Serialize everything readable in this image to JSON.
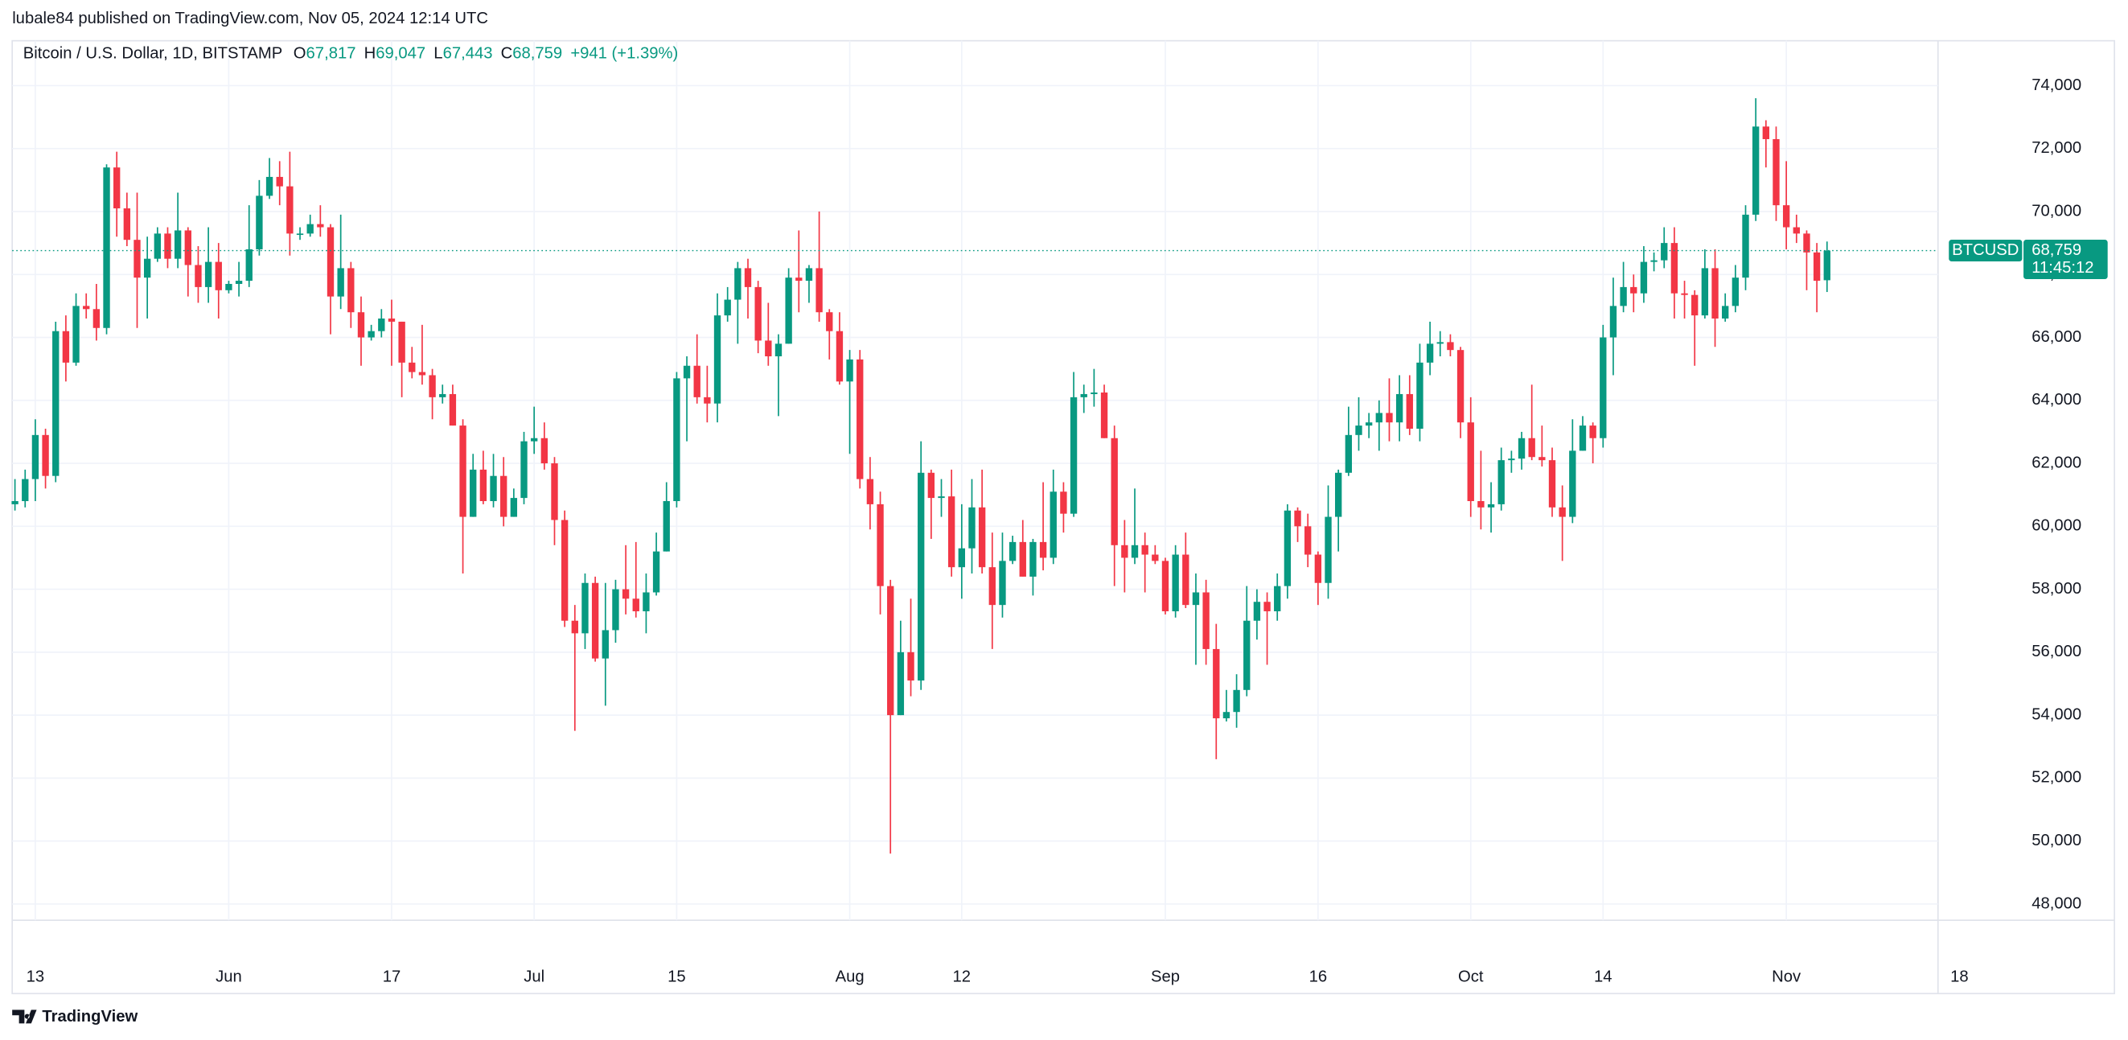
{
  "header": {
    "published": "lubale84 published on TradingView.com, Nov 05, 2024 12:14 UTC"
  },
  "chart_data": {
    "type": "candlestick",
    "title": "Bitcoin / U.S. Dollar, 1D, BITSTAMP",
    "legend_values": [
      {
        "key": "O",
        "value": "67,817"
      },
      {
        "key": "H",
        "value": "69,047"
      },
      {
        "key": "L",
        "value": "67,443"
      },
      {
        "key": "C",
        "value": "68,759"
      }
    ],
    "change": "+941 (+1.39%)",
    "up_color": "#089981",
    "down_color": "#f23645",
    "candles": [
      [
        60700,
        61500,
        60500,
        60800
      ],
      [
        60800,
        61800,
        60600,
        61500
      ],
      [
        61500,
        63400,
        60800,
        62900
      ],
      [
        62900,
        63100,
        61200,
        61600
      ],
      [
        61600,
        66500,
        61400,
        66200
      ],
      [
        66200,
        66700,
        64600,
        65200
      ],
      [
        65200,
        67400,
        65100,
        67000
      ],
      [
        67000,
        67400,
        66600,
        66900
      ],
      [
        66900,
        67700,
        65900,
        66300
      ],
      [
        66300,
        71500,
        66100,
        71400
      ],
      [
        71400,
        71900,
        69200,
        70100
      ],
      [
        70100,
        70600,
        68900,
        69100
      ],
      [
        69100,
        70600,
        66300,
        67900
      ],
      [
        67900,
        69200,
        66600,
        68500
      ],
      [
        68500,
        69500,
        68400,
        69300
      ],
      [
        69300,
        69500,
        68200,
        68500
      ],
      [
        68500,
        70600,
        68200,
        69400
      ],
      [
        69400,
        69500,
        67300,
        68300
      ],
      [
        68300,
        68900,
        67100,
        67600
      ],
      [
        67600,
        69500,
        67100,
        68400
      ],
      [
        68400,
        69000,
        66600,
        67500
      ],
      [
        67500,
        67800,
        67400,
        67700
      ],
      [
        67700,
        68400,
        67300,
        67800
      ],
      [
        67800,
        70200,
        67600,
        68800
      ],
      [
        68800,
        71000,
        68600,
        70500
      ],
      [
        70500,
        71700,
        70400,
        71100
      ],
      [
        71100,
        71600,
        70200,
        70800
      ],
      [
        70800,
        71900,
        68600,
        69300
      ],
      [
        69300,
        69500,
        69100,
        69300
      ],
      [
        69300,
        69900,
        69200,
        69600
      ],
      [
        69600,
        70200,
        69200,
        69500
      ],
      [
        69500,
        69600,
        66100,
        67300
      ],
      [
        67300,
        69900,
        66900,
        68200
      ],
      [
        68200,
        68400,
        66300,
        66800
      ],
      [
        66800,
        67300,
        65100,
        66000
      ],
      [
        66000,
        66400,
        65900,
        66200
      ],
      [
        66200,
        66900,
        66000,
        66600
      ],
      [
        66600,
        67200,
        65100,
        66500
      ],
      [
        66500,
        66500,
        64100,
        65200
      ],
      [
        65200,
        65700,
        64700,
        64900
      ],
      [
        64900,
        66400,
        64500,
        64800
      ],
      [
        64800,
        65000,
        63400,
        64100
      ],
      [
        64100,
        64500,
        63900,
        64200
      ],
      [
        64200,
        64500,
        63200,
        63200
      ],
      [
        63200,
        63400,
        58500,
        60300
      ],
      [
        60300,
        62300,
        60300,
        61800
      ],
      [
        61800,
        62400,
        60700,
        60800
      ],
      [
        60800,
        62300,
        60600,
        61600
      ],
      [
        61600,
        62200,
        60000,
        60300
      ],
      [
        60300,
        61200,
        60300,
        60900
      ],
      [
        60900,
        63000,
        60700,
        62700
      ],
      [
        62700,
        63800,
        62300,
        62800
      ],
      [
        62800,
        63300,
        61800,
        62000
      ],
      [
        62000,
        62200,
        59400,
        60200
      ],
      [
        60200,
        60500,
        56800,
        57000
      ],
      [
        57000,
        57500,
        53500,
        56600
      ],
      [
        56600,
        58500,
        56100,
        58200
      ],
      [
        58200,
        58400,
        55700,
        55800
      ],
      [
        55800,
        58200,
        54300,
        56700
      ],
      [
        56700,
        58300,
        56300,
        58000
      ],
      [
        58000,
        59400,
        57200,
        57700
      ],
      [
        57700,
        59500,
        57100,
        57300
      ],
      [
        57300,
        58500,
        56600,
        57900
      ],
      [
        57900,
        59800,
        57800,
        59200
      ],
      [
        59200,
        61400,
        59200,
        60800
      ],
      [
        60800,
        64900,
        60600,
        64700
      ],
      [
        64700,
        65400,
        62700,
        65100
      ],
      [
        65100,
        66100,
        63900,
        64100
      ],
      [
        64100,
        65100,
        63300,
        63900
      ],
      [
        63900,
        67400,
        63300,
        66700
      ],
      [
        66700,
        67600,
        66500,
        67200
      ],
      [
        67200,
        68400,
        65800,
        68200
      ],
      [
        68200,
        68500,
        66600,
        67600
      ],
      [
        67600,
        67800,
        65500,
        65900
      ],
      [
        65900,
        67100,
        65100,
        65400
      ],
      [
        65400,
        66100,
        63500,
        65800
      ],
      [
        65800,
        68200,
        65800,
        67900
      ],
      [
        67900,
        69400,
        66800,
        67800
      ],
      [
        67800,
        68300,
        67100,
        68200
      ],
      [
        68200,
        70000,
        66500,
        66800
      ],
      [
        66800,
        66900,
        65300,
        66200
      ],
      [
        66200,
        66800,
        64500,
        64600
      ],
      [
        64600,
        65600,
        62300,
        65300
      ],
      [
        65300,
        65600,
        61200,
        61500
      ],
      [
        61500,
        62200,
        59900,
        60700
      ],
      [
        60700,
        61100,
        57200,
        58100
      ],
      [
        58100,
        58300,
        49600,
        54000
      ],
      [
        54000,
        57000,
        54000,
        56000
      ],
      [
        56000,
        57700,
        54600,
        55100
      ],
      [
        55100,
        62700,
        54800,
        61700
      ],
      [
        61700,
        61800,
        59600,
        60900
      ],
      [
        60900,
        61500,
        60300,
        60950
      ],
      [
        60950,
        61800,
        58400,
        58700
      ],
      [
        58700,
        60700,
        57700,
        59300
      ],
      [
        59300,
        61500,
        58500,
        60600
      ],
      [
        60600,
        61800,
        58500,
        58700
      ],
      [
        58700,
        59800,
        56100,
        57500
      ],
      [
        57500,
        59800,
        57100,
        58900
      ],
      [
        58900,
        59700,
        58800,
        59500
      ],
      [
        59500,
        60200,
        58400,
        58400
      ],
      [
        58400,
        59600,
        57800,
        59500
      ],
      [
        59500,
        61400,
        58600,
        59000
      ],
      [
        59000,
        61800,
        58800,
        61100
      ],
      [
        61100,
        61400,
        59800,
        60400
      ],
      [
        60400,
        64900,
        60300,
        64100
      ],
      [
        64100,
        64500,
        63600,
        64200
      ],
      [
        64200,
        65000,
        63800,
        64250
      ],
      [
        64250,
        64500,
        62800,
        62800
      ],
      [
        62800,
        63200,
        58100,
        59400
      ],
      [
        59400,
        60200,
        57900,
        59000
      ],
      [
        59000,
        61200,
        58800,
        59400
      ],
      [
        59400,
        59800,
        57900,
        59100
      ],
      [
        59100,
        59400,
        58800,
        58900
      ],
      [
        58900,
        59000,
        57200,
        57300
      ],
      [
        57300,
        59400,
        57100,
        59100
      ],
      [
        59100,
        59800,
        57400,
        57500
      ],
      [
        57500,
        58500,
        55600,
        57900
      ],
      [
        57900,
        58300,
        55600,
        56100
      ],
      [
        56100,
        56900,
        52600,
        53900
      ],
      [
        53900,
        54800,
        53800,
        54100
      ],
      [
        54100,
        55300,
        53600,
        54800
      ],
      [
        54800,
        58100,
        54600,
        57000
      ],
      [
        57000,
        58000,
        56400,
        57600
      ],
      [
        57600,
        57900,
        55600,
        57300
      ],
      [
        57300,
        58500,
        57000,
        58100
      ],
      [
        58100,
        60700,
        57700,
        60500
      ],
      [
        60500,
        60600,
        59500,
        60000
      ],
      [
        60000,
        60400,
        58700,
        59100
      ],
      [
        59100,
        59200,
        57500,
        58200
      ],
      [
        58200,
        61300,
        57700,
        60300
      ],
      [
        60300,
        61800,
        59200,
        61700
      ],
      [
        61700,
        63800,
        61600,
        62900
      ],
      [
        62900,
        64100,
        62400,
        63200
      ],
      [
        63200,
        63600,
        62800,
        63300
      ],
      [
        63300,
        64000,
        62400,
        63600
      ],
      [
        63600,
        64700,
        62700,
        63300
      ],
      [
        63300,
        64800,
        62700,
        64200
      ],
      [
        64200,
        64800,
        62900,
        63100
      ],
      [
        63100,
        65800,
        62700,
        65200
      ],
      [
        65200,
        66500,
        64800,
        65800
      ],
      [
        65800,
        66200,
        65400,
        65850
      ],
      [
        65850,
        66100,
        65400,
        65600
      ],
      [
        65600,
        65700,
        62800,
        63300
      ],
      [
        63300,
        64100,
        60300,
        60800
      ],
      [
        60800,
        62400,
        59900,
        60600
      ],
      [
        60600,
        61400,
        59800,
        60700
      ],
      [
        60700,
        62500,
        60500,
        62100
      ],
      [
        62100,
        62400,
        61700,
        62150
      ],
      [
        62150,
        63000,
        61800,
        62800
      ],
      [
        62800,
        64500,
        62100,
        62200
      ],
      [
        62200,
        63200,
        61900,
        62100
      ],
      [
        62100,
        62500,
        60300,
        60600
      ],
      [
        60600,
        61300,
        58900,
        60300
      ],
      [
        60300,
        63400,
        60100,
        62400
      ],
      [
        62400,
        63500,
        62400,
        63200
      ],
      [
        63200,
        63300,
        62000,
        62800
      ],
      [
        62800,
        66400,
        62500,
        66000
      ],
      [
        66000,
        67900,
        64800,
        67000
      ],
      [
        67000,
        68400,
        66800,
        67600
      ],
      [
        67600,
        68000,
        66800,
        67400
      ],
      [
        67400,
        68900,
        67100,
        68400
      ],
      [
        68400,
        68700,
        68100,
        68450
      ],
      [
        68450,
        69500,
        68200,
        69000
      ],
      [
        69000,
        69500,
        66600,
        67400
      ],
      [
        67400,
        67800,
        66600,
        67350
      ],
      [
        67350,
        67500,
        65100,
        66700
      ],
      [
        66700,
        68800,
        66600,
        68200
      ],
      [
        68200,
        68800,
        65700,
        66600
      ],
      [
        66600,
        67400,
        66500,
        67000
      ],
      [
        67000,
        68300,
        66800,
        67900
      ],
      [
        67900,
        70200,
        67500,
        69900
      ],
      [
        69900,
        73600,
        69700,
        72700
      ],
      [
        72700,
        72900,
        71400,
        72300
      ],
      [
        72300,
        72700,
        69700,
        70200
      ],
      [
        70200,
        71600,
        68800,
        69500
      ],
      [
        69500,
        69900,
        69000,
        69300
      ],
      [
        69300,
        69400,
        67500,
        68700
      ],
      [
        68700,
        69000,
        66800,
        67800
      ],
      [
        67817,
        69047,
        67443,
        68759
      ]
    ],
    "xlim": [
      -0.27,
      188.9
    ],
    "xticks": [
      {
        "value": 2,
        "label": "13"
      },
      {
        "value": 21,
        "label": "Jun"
      },
      {
        "value": 37,
        "label": "17"
      },
      {
        "value": 51,
        "label": "Jul"
      },
      {
        "value": 65,
        "label": "15"
      },
      {
        "value": 82,
        "label": "Aug"
      },
      {
        "value": 93,
        "label": "12"
      },
      {
        "value": 113,
        "label": "Sep"
      },
      {
        "value": 128,
        "label": "16"
      },
      {
        "value": 143,
        "label": "Oct"
      },
      {
        "value": 156,
        "label": "14"
      },
      {
        "value": 174,
        "label": "Nov"
      },
      {
        "value": 191,
        "label": "18"
      }
    ],
    "ylim": [
      47483,
      75426
    ],
    "yticks": [
      {
        "value": 48000,
        "label": "48,000"
      },
      {
        "value": 50000,
        "label": "50,000"
      },
      {
        "value": 52000,
        "label": "52,000"
      },
      {
        "value": 54000,
        "label": "54,000"
      },
      {
        "value": 56000,
        "label": "56,000"
      },
      {
        "value": 58000,
        "label": "58,000"
      },
      {
        "value": 60000,
        "label": "60,000"
      },
      {
        "value": 62000,
        "label": "62,000"
      },
      {
        "value": 64000,
        "label": "64,000"
      },
      {
        "value": 66000,
        "label": "66,000"
      },
      {
        "value": 68000,
        "label": "68,000"
      },
      {
        "value": 70000,
        "label": "70,000"
      },
      {
        "value": 72000,
        "label": "72,000"
      },
      {
        "value": 74000,
        "label": "74,000"
      }
    ],
    "grid": true,
    "last_price": {
      "value": 68759,
      "label": "68,759"
    },
    "symbol": "BTCUSD",
    "countdown": "11:45:12"
  },
  "footer": {
    "brand": "TradingView"
  }
}
